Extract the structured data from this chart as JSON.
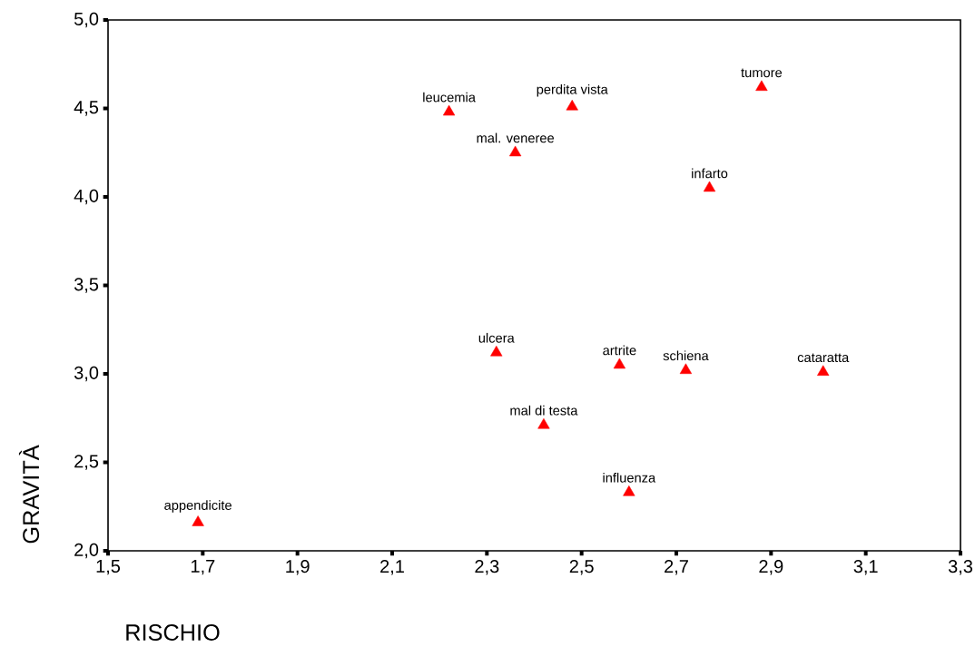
{
  "chart_data": {
    "type": "scatter",
    "xlabel": "RISCHIO",
    "ylabel": "GRAVITÀ",
    "color": "#ff0000",
    "marker": "triangle",
    "x": [
      1.69,
      2.22,
      2.48,
      2.36,
      2.88,
      2.77,
      2.32,
      2.58,
      2.72,
      3.01,
      2.42,
      2.6
    ],
    "values": [
      2.16,
      4.48,
      4.51,
      4.25,
      4.62,
      4.05,
      3.12,
      3.05,
      3.02,
      3.01,
      2.71,
      2.33
    ],
    "annotations": [
      {
        "text": "appendicite",
        "x": 1.69,
        "y": 2.16
      },
      {
        "text": "leucemia",
        "x": 2.22,
        "y": 4.48
      },
      {
        "text": "perdita vista",
        "x": 2.48,
        "y": 4.51
      },
      {
        "text": "mal. veneree",
        "x": 2.36,
        "y": 4.25
      },
      {
        "text": "tumore",
        "x": 2.88,
        "y": 4.62
      },
      {
        "text": "infarto",
        "x": 2.77,
        "y": 4.05
      },
      {
        "text": "ulcera",
        "x": 2.32,
        "y": 3.12
      },
      {
        "text": "artrite",
        "x": 2.58,
        "y": 3.05
      },
      {
        "text": "schiena",
        "x": 2.72,
        "y": 3.02
      },
      {
        "text": "cataratta",
        "x": 3.01,
        "y": 3.01
      },
      {
        "text": "mal di testa",
        "x": 2.42,
        "y": 2.71
      },
      {
        "text": "influenza",
        "x": 2.6,
        "y": 2.33
      }
    ],
    "xlim": [
      1.5,
      3.3
    ],
    "ylim": [
      2.0,
      5.0
    ],
    "xticks": [
      {
        "value": 1.5,
        "label": "1,5"
      },
      {
        "value": 1.7,
        "label": "1,7"
      },
      {
        "value": 1.9,
        "label": "1,9"
      },
      {
        "value": 2.1,
        "label": "2,1"
      },
      {
        "value": 2.3,
        "label": "2,3"
      },
      {
        "value": 2.5,
        "label": "2,5"
      },
      {
        "value": 2.7,
        "label": "2,7"
      },
      {
        "value": 2.9,
        "label": "2,9"
      },
      {
        "value": 3.1,
        "label": "3,1"
      },
      {
        "value": 3.3,
        "label": "3,3"
      }
    ],
    "yticks": [
      {
        "value": 2.0,
        "label": "2,0"
      },
      {
        "value": 2.5,
        "label": "2,5"
      },
      {
        "value": 3.0,
        "label": "3,0"
      },
      {
        "value": 3.5,
        "label": "3,5"
      },
      {
        "value": 4.0,
        "label": "4,0"
      },
      {
        "value": 4.5,
        "label": "4,5"
      },
      {
        "value": 5.0,
        "label": "5,0"
      }
    ],
    "grid": false
  }
}
